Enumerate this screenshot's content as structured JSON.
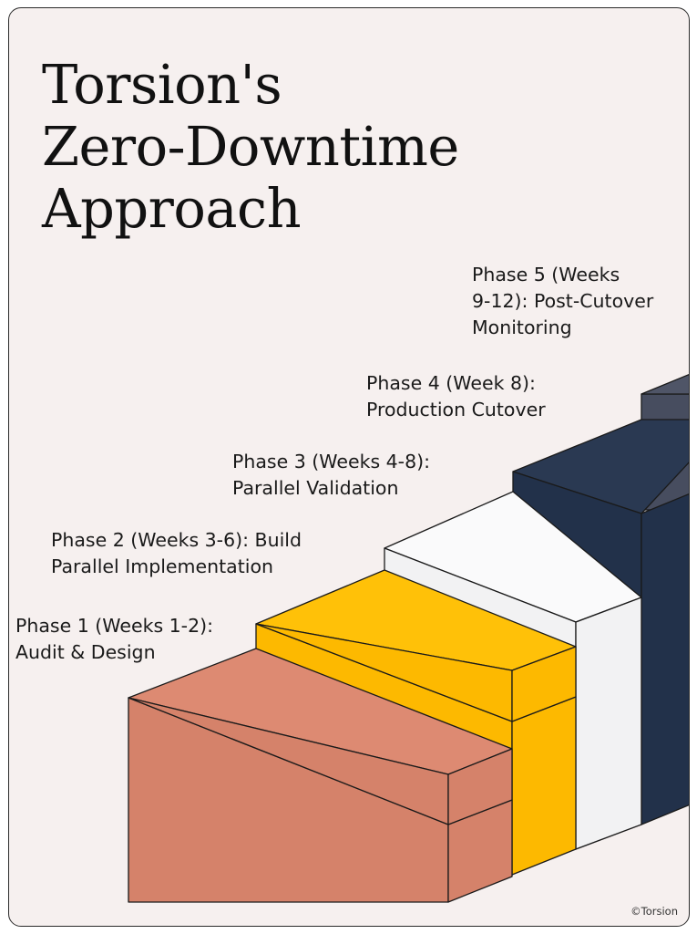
{
  "title_lines": [
    "Torsion's",
    "Zero-Downtime",
    "Approach"
  ],
  "phases": [
    {
      "lines": [
        "Phase 1 (Weeks 1-2):",
        "Audit & Design"
      ],
      "color": "#d5826a"
    },
    {
      "lines": [
        "Phase 2 (Weeks 3-6): Build",
        "Parallel Implementation"
      ],
      "color": "#fdb900"
    },
    {
      "lines": [
        "Phase 3 (Weeks 4-8):",
        "Parallel Validation"
      ],
      "color": "#f2f2f3"
    },
    {
      "lines": [
        "Phase 4 (Week 8):",
        "Production Cutover"
      ],
      "color": "#22314a"
    },
    {
      "lines": [
        "Phase 5 (Weeks",
        "9-12): Post-Cutover",
        "Monitoring"
      ],
      "color": "#474d5f"
    }
  ],
  "footer": "©Torsion",
  "colors": {
    "background": "#f6f0ef",
    "outline": "#1a1a1a"
  }
}
